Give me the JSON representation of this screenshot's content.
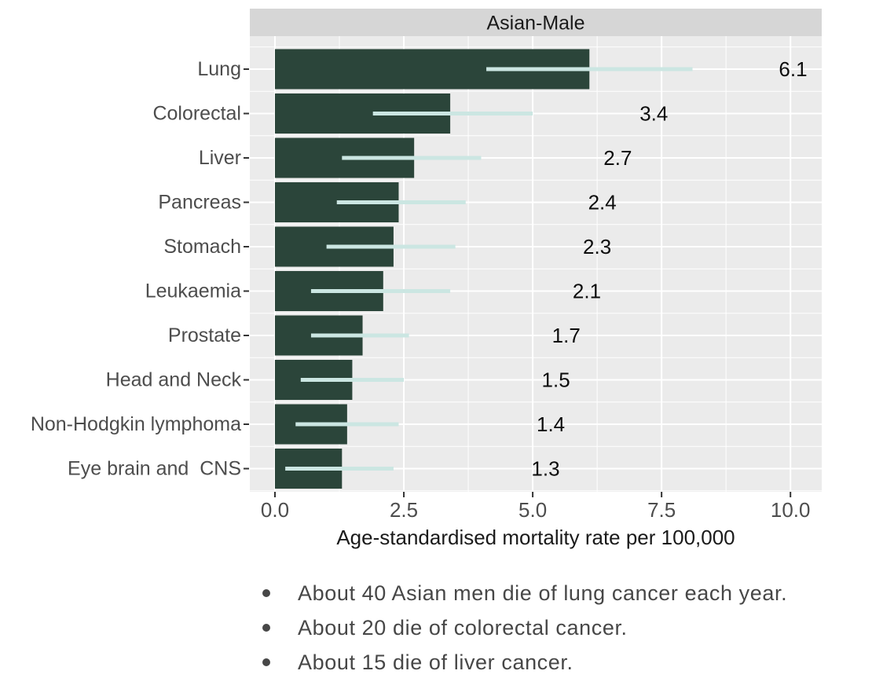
{
  "chart_data": {
    "type": "bar",
    "orientation": "horizontal",
    "facet_title": "Asian-Male",
    "xlabel": "Age-standardised mortality rate per 100,000",
    "categories": [
      "Lung",
      "Colorectal",
      "Liver",
      "Pancreas",
      "Stomach",
      "Leukaemia",
      "Prostate",
      "Head and Neck",
      "Non-Hodgkin lymphoma",
      "Eye brain and  CNS"
    ],
    "values": [
      6.1,
      3.4,
      2.7,
      2.4,
      2.3,
      2.1,
      1.7,
      1.5,
      1.4,
      1.3
    ],
    "value_labels": [
      "6.1",
      "3.4",
      "2.7",
      "2.4",
      "2.3",
      "2.1",
      "1.7",
      "1.5",
      "1.4",
      "1.3"
    ],
    "error_low": [
      4.1,
      1.9,
      1.3,
      1.2,
      1.0,
      0.7,
      0.7,
      0.5,
      0.4,
      0.2
    ],
    "error_high": [
      8.1,
      5.0,
      4.0,
      3.7,
      3.5,
      3.4,
      2.6,
      2.5,
      2.4,
      2.3
    ],
    "xlim": [
      0,
      10
    ],
    "x_ticks": [
      0,
      2.5,
      5,
      7.5,
      10
    ],
    "x_tick_labels": [
      "0.0",
      "2.5",
      "5.0",
      "7.5",
      "10.0"
    ],
    "x_minor_ticks": [
      1.25,
      3.75,
      6.25,
      8.75
    ],
    "grid": true,
    "legend": "none",
    "colors": {
      "bar": "#2B453A",
      "errorbar": "#CBE6E2",
      "panel_bg": "#EBEBEB",
      "strip_bg": "#D6D6D6",
      "grid": "#FFFFFF",
      "tick_mark": "#333333",
      "axis_text": "#4D4D4D",
      "value_label": "#0D0D0D",
      "title_text": "#1A1A1A"
    }
  },
  "notes": {
    "items": [
      "About 40 Asian men die of lung cancer each year.",
      "About 20 die of colorectal cancer.",
      "About 15 die of liver cancer."
    ]
  }
}
